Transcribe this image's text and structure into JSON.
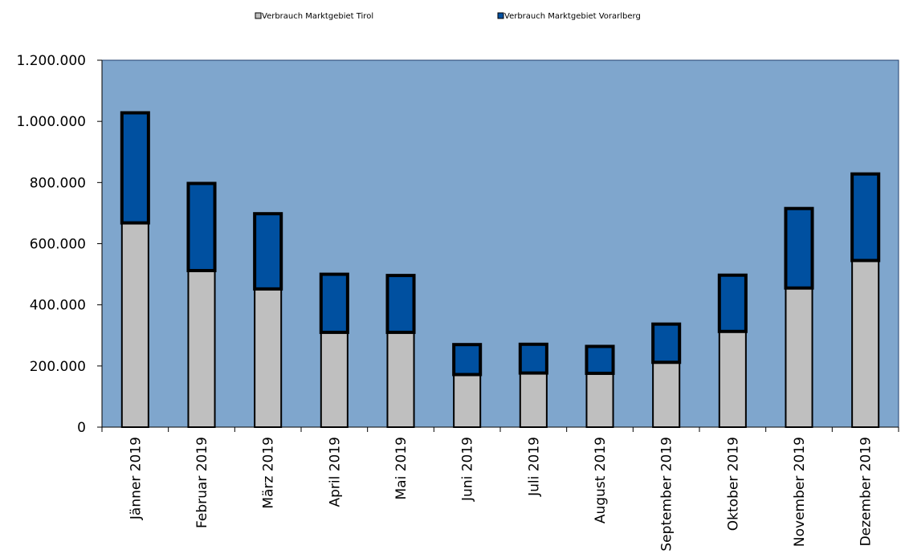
{
  "chart_data": {
    "type": "bar",
    "stacked": true,
    "categories": [
      "Jänner 2019",
      "Februar 2019",
      "März 2019",
      "April 2019",
      "Mai 2019",
      "Juni 2019",
      "Juli 2019",
      "August 2019",
      "September 2019",
      "Oktober 2019",
      "November 2019",
      "Dezember 2019"
    ],
    "series": [
      {
        "name": "Verbrauch Marktgebiet Tirol",
        "color": "#BFBFBF",
        "values": [
          668000,
          512000,
          452000,
          310000,
          310000,
          172000,
          177000,
          176000,
          212000,
          313000,
          455000,
          545000
        ]
      },
      {
        "name": "Verbrauch Marktgebiet Vorarlberg",
        "color": "#0050A0",
        "values": [
          360000,
          285000,
          246000,
          190000,
          186000,
          98000,
          94000,
          88000,
          125000,
          184000,
          260000,
          283000
        ]
      }
    ],
    "yticks": [
      "0",
      "200.000",
      "400.000",
      "600.000",
      "800.000",
      "1.000.000",
      "1.200.000"
    ],
    "ylim": [
      0,
      1200000
    ],
    "title": "",
    "xlabel": "",
    "ylabel": "",
    "legend_position": "top",
    "plot_background": "#7FA6CD",
    "bar_outline": "#000000"
  }
}
